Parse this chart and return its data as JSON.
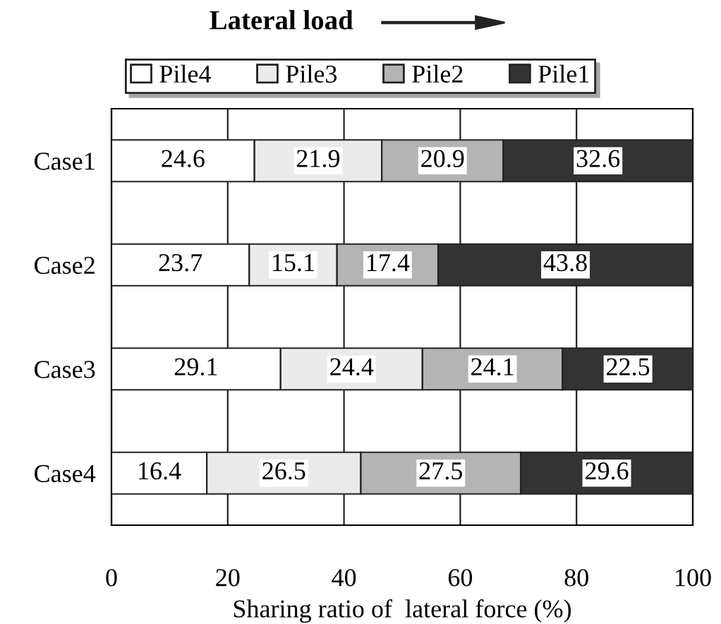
{
  "chart_data": {
    "type": "bar",
    "orientation": "horizontal",
    "stacked": true,
    "title": "Lateral load",
    "xlabel": "Sharing ratio of  lateral force (%)",
    "categories": [
      "Case1",
      "Case2",
      "Case3",
      "Case4"
    ],
    "series": [
      {
        "name": "Pile4",
        "color": "#ffffff",
        "values": [
          24.6,
          23.7,
          29.1,
          16.4
        ]
      },
      {
        "name": "Pile3",
        "color": "#ebebeb",
        "values": [
          21.9,
          15.1,
          24.4,
          26.5
        ]
      },
      {
        "name": "Pile2",
        "color": "#b4b4b4",
        "values": [
          20.9,
          17.4,
          24.1,
          27.5
        ]
      },
      {
        "name": "Pile1",
        "color": "#333333",
        "values": [
          32.6,
          43.8,
          22.5,
          29.6
        ]
      }
    ],
    "xlim": [
      0,
      100
    ],
    "xticks": [
      0,
      20,
      40,
      60,
      80,
      100
    ],
    "grid": "x",
    "legend": "top",
    "data_labels": true
  }
}
